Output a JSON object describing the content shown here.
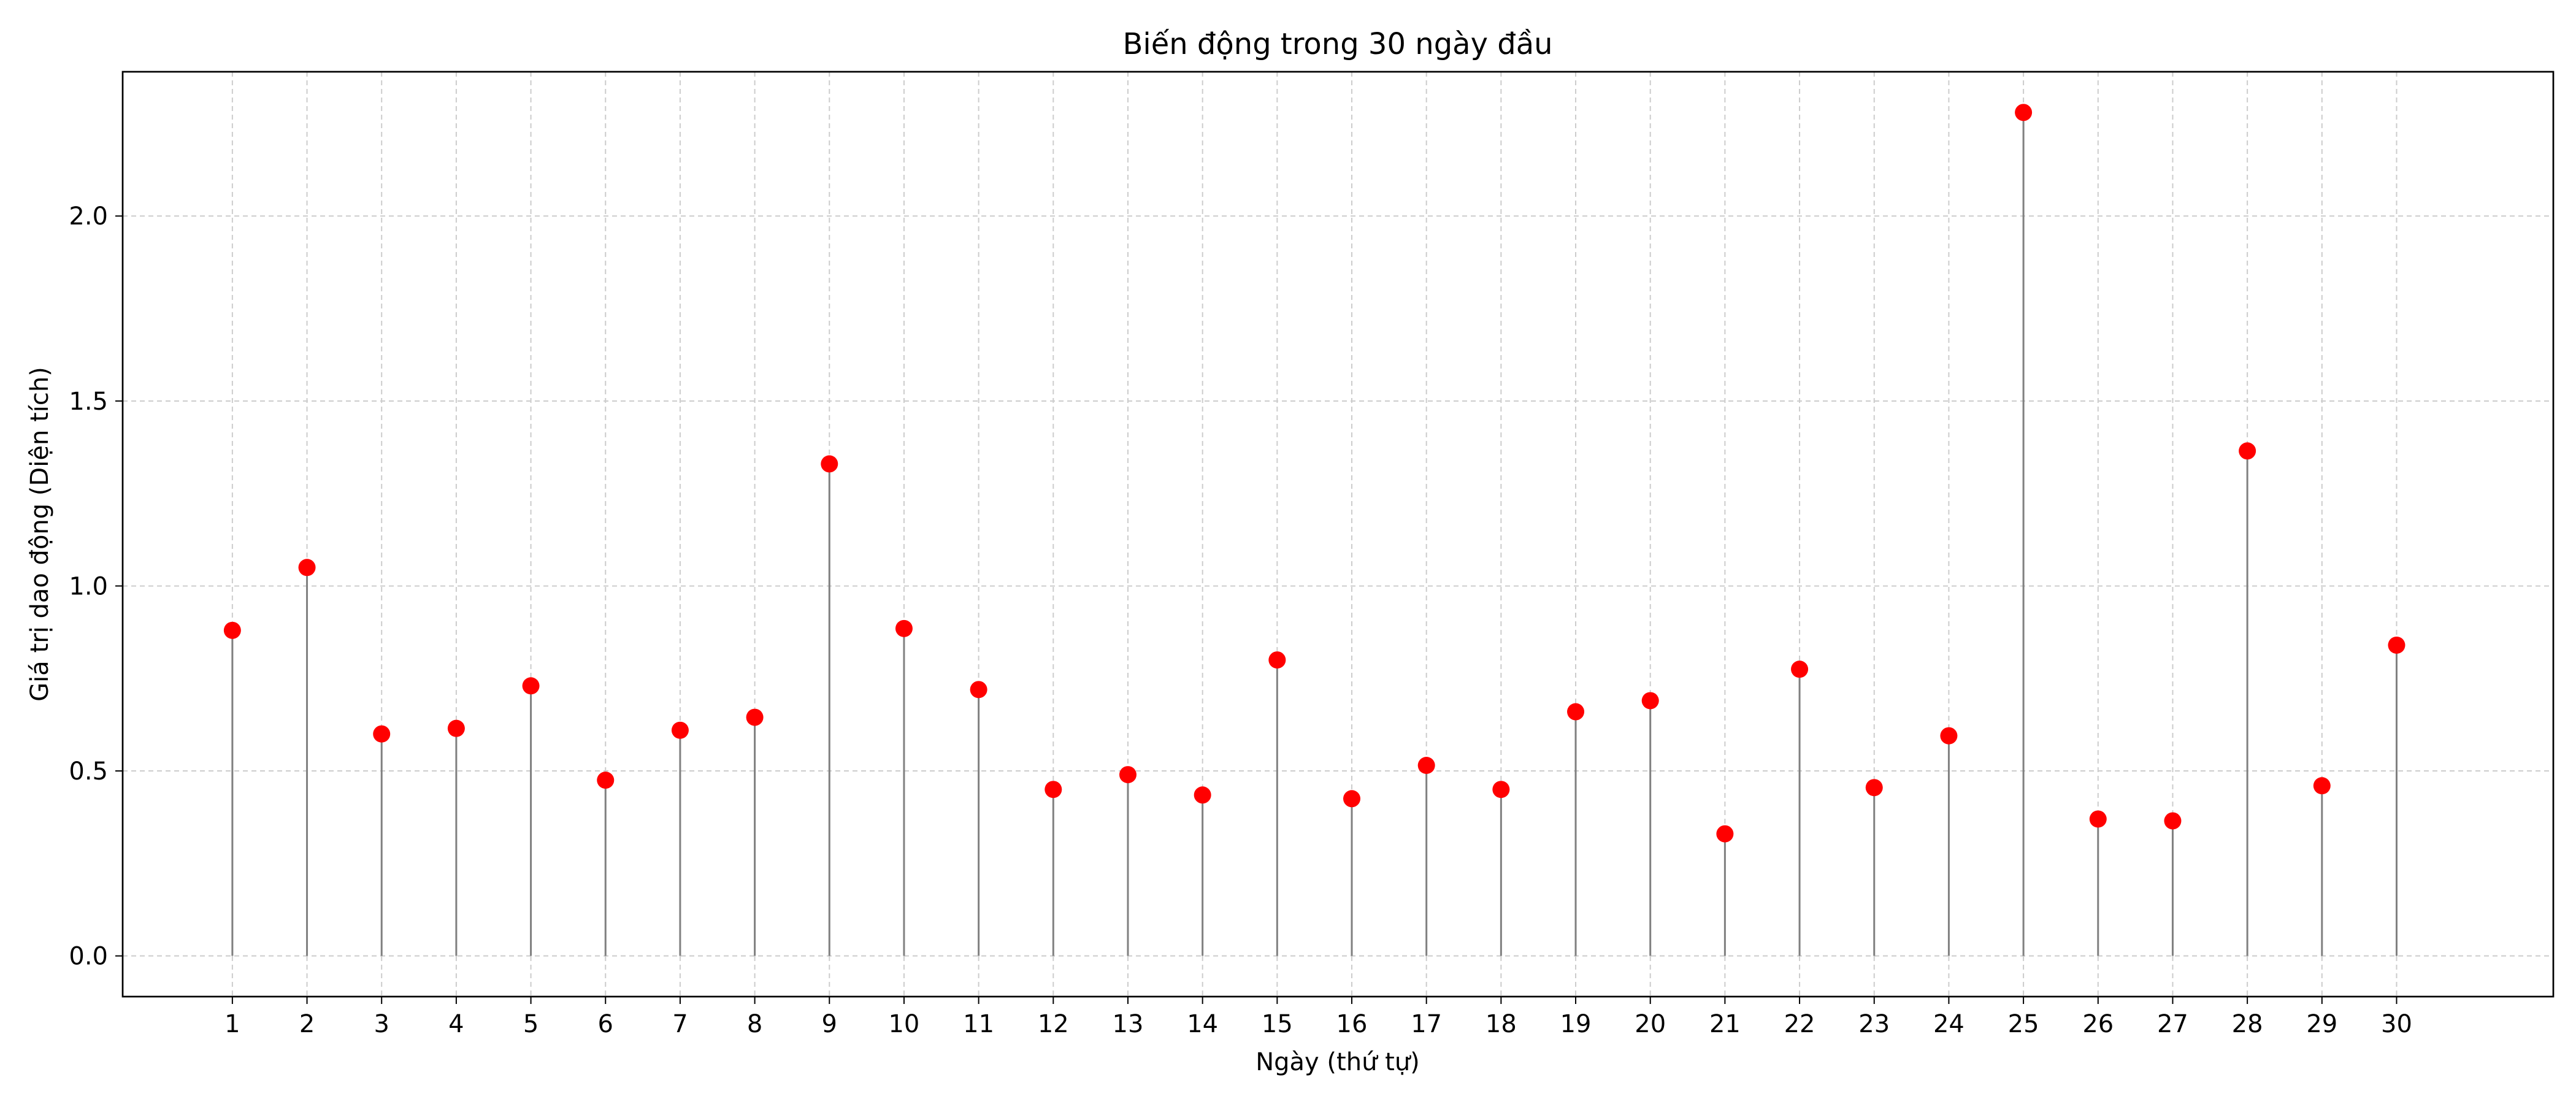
{
  "chart_data": {
    "type": "stem",
    "title": "Biến động trong 30 ngày đầu",
    "xlabel": "Ngày (thứ tự)",
    "ylabel": "Giá trị dao động (Diện tích)",
    "x": [
      1,
      2,
      3,
      4,
      5,
      6,
      7,
      8,
      9,
      10,
      11,
      12,
      13,
      14,
      15,
      16,
      17,
      18,
      19,
      20,
      21,
      22,
      23,
      24,
      25,
      26,
      27,
      28,
      29,
      30
    ],
    "values": [
      0.88,
      1.05,
      0.6,
      0.615,
      0.73,
      0.475,
      0.61,
      0.645,
      1.33,
      0.885,
      0.72,
      0.45,
      0.49,
      0.435,
      0.8,
      0.425,
      0.515,
      0.45,
      0.66,
      0.69,
      0.33,
      0.775,
      0.455,
      0.595,
      2.28,
      0.37,
      0.365,
      1.365,
      0.46,
      0.84
    ],
    "xticks": [
      "1",
      "2",
      "3",
      "4",
      "5",
      "6",
      "7",
      "8",
      "9",
      "10",
      "11",
      "12",
      "13",
      "14",
      "15",
      "16",
      "17",
      "18",
      "19",
      "20",
      "21",
      "22",
      "23",
      "24",
      "25",
      "26",
      "27",
      "28",
      "29",
      "30"
    ],
    "yticks": [
      "0.0",
      "0.5",
      "1.0",
      "1.5",
      "2.0"
    ],
    "ytick_values": [
      0.0,
      0.5,
      1.0,
      1.5,
      2.0
    ],
    "xlim": [
      -0.47,
      32.1
    ],
    "ylim": [
      -0.11,
      2.39
    ],
    "grid": true,
    "colors": {
      "marker": "#ff0000",
      "stem": "#808080",
      "grid": "#cccccc"
    }
  }
}
